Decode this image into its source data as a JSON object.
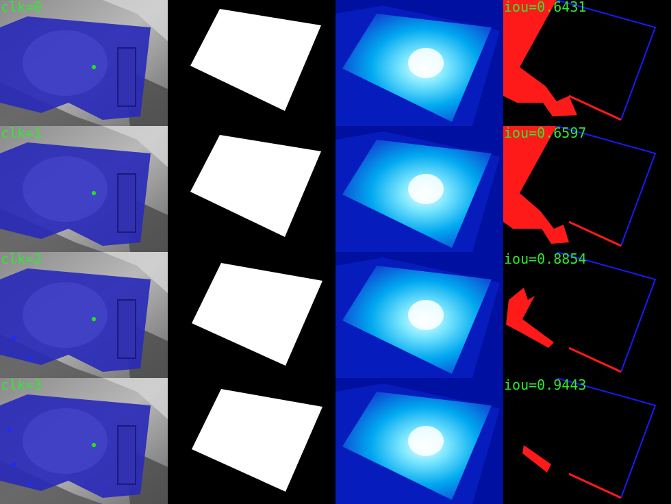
{
  "colors": {
    "text": "#33e633",
    "click_positive": "#22dd22",
    "click_negative": "#1a2cff",
    "mask_overlay": "#2a2ab8",
    "mask_white": "#ffffff",
    "false_negative": "#ff1a1a",
    "false_positive": "#1a1aff",
    "heat_low": "#0010a0",
    "heat_mid": "#00a8f0",
    "heat_high": "#f4ffff"
  },
  "columns": [
    "click-overlay",
    "predicted-mask",
    "probability-map",
    "error-map"
  ],
  "rows": [
    {
      "clk_label": "clk=0",
      "iou_label": "iou=0.6431",
      "iou": 0.6431,
      "positive_clicks": 1,
      "negative_clicks": 0
    },
    {
      "clk_label": "clk=1",
      "iou_label": "iou=0.6597",
      "iou": 0.6597,
      "positive_clicks": 1,
      "negative_clicks": 0
    },
    {
      "clk_label": "clk=2",
      "iou_label": "iou=0.8854",
      "iou": 0.8854,
      "positive_clicks": 1,
      "negative_clicks": 2
    },
    {
      "clk_label": "clk=3",
      "iou_label": "iou=0.9443",
      "iou": 0.9443,
      "positive_clicks": 1,
      "negative_clicks": 3
    }
  ]
}
